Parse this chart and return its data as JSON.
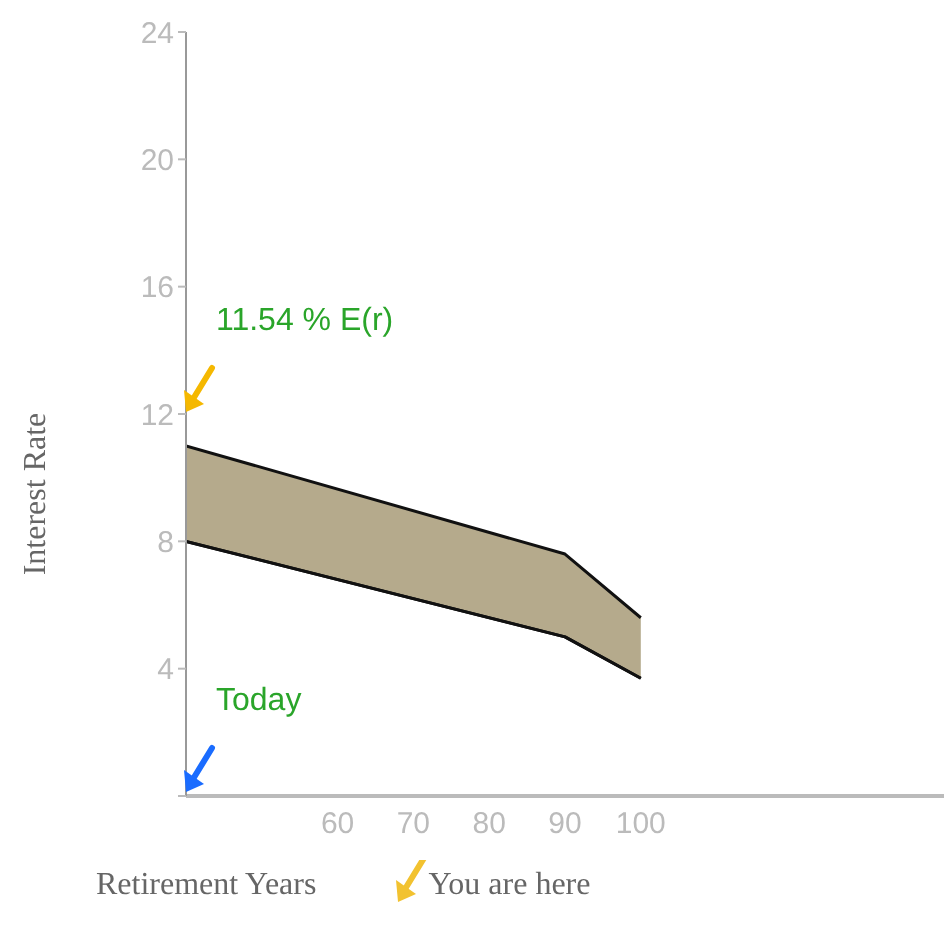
{
  "chart_data": {
    "type": "area",
    "xlabel": "Retirement Years",
    "ylabel": "Interest Rate",
    "x": [
      40,
      90,
      100
    ],
    "series": [
      {
        "color": "#b5aa8c",
        "values": [
          11.0,
          7.6,
          5.6
        ]
      },
      {
        "type": "line",
        "color": "#111111",
        "values": [
          8.0,
          5.0,
          3.7
        ]
      }
    ],
    "xlim": [
      40,
      140
    ],
    "xticks": [
      60,
      70,
      80,
      90,
      100
    ],
    "ylim": [
      0,
      24
    ],
    "yticks": [
      {
        "value": 0,
        "label": null
      },
      4,
      8,
      12,
      16,
      20,
      24
    ],
    "annotations": [
      "11.54 % E(r)",
      "Today",
      "You are here"
    ]
  }
}
